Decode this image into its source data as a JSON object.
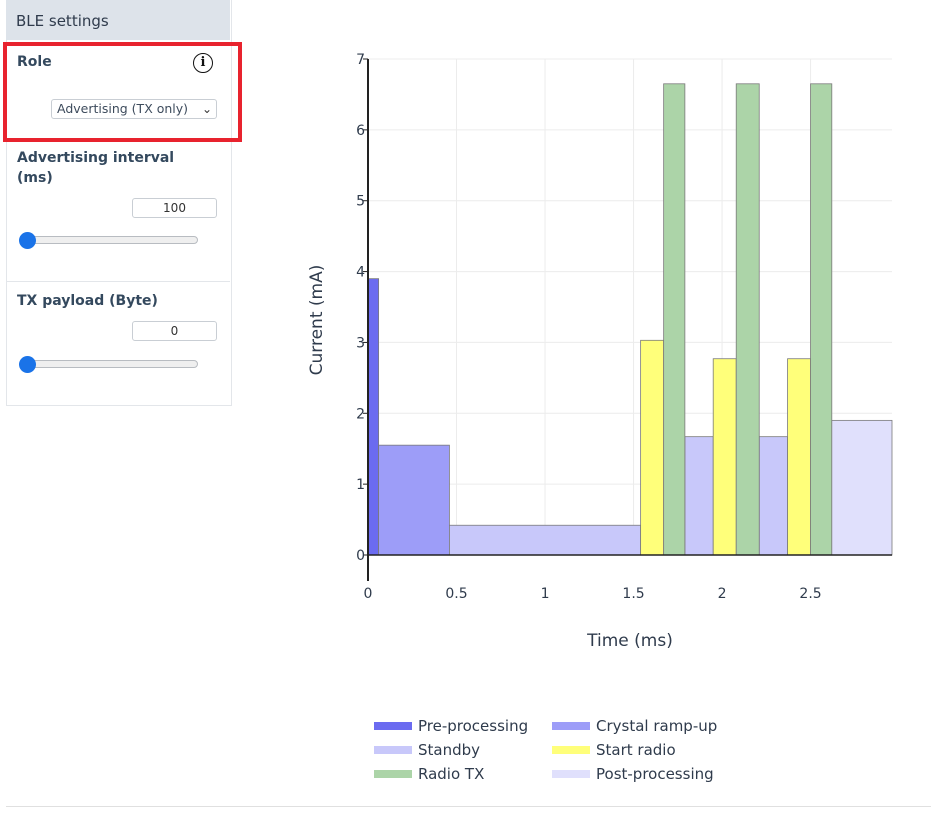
{
  "sidebar": {
    "title": "BLE settings",
    "role": {
      "label": "Role",
      "info_icon": "info-icon",
      "selected": "Advertising (TX only)"
    },
    "adv_interval": {
      "label_line1": "Advertising interval",
      "label_line2": "(ms)",
      "value": "100",
      "slider_fraction": 0.0
    },
    "tx_payload": {
      "label": "TX payload (Byte)",
      "value": "0",
      "slider_fraction": 0.0
    },
    "highlight_color": "#e8232e"
  },
  "chart_data": {
    "type": "bar",
    "xlabel": "Time (ms)",
    "ylabel": "Current (mA)",
    "xlim": [
      0,
      2.96
    ],
    "ylim": [
      0,
      7
    ],
    "xticks": [
      "0",
      "0.5",
      "1",
      "1.5",
      "2",
      "2.5"
    ],
    "yticks": [
      "0",
      "1",
      "2",
      "3",
      "4",
      "5",
      "6",
      "7"
    ],
    "grid": true,
    "legend_position": "bottom",
    "series": [
      {
        "name": "Pre-processing",
        "color": "#6b6bf0",
        "segments": [
          {
            "x0": 0,
            "x1": 0.06,
            "y": 3.9
          }
        ]
      },
      {
        "name": "Crystal ramp-up",
        "color": "#9d9df8",
        "segments": [
          {
            "x0": 0.06,
            "x1": 0.46,
            "y": 1.55
          }
        ]
      },
      {
        "name": "Standby",
        "color": "#c8c8fa",
        "segments": [
          {
            "x0": 0.46,
            "x1": 1.54,
            "y": 0.42
          },
          {
            "x0": 1.79,
            "x1": 1.95,
            "y": 1.67
          },
          {
            "x0": 2.21,
            "x1": 2.37,
            "y": 1.67
          }
        ]
      },
      {
        "name": "Start radio",
        "color": "#ffff7a",
        "segments": [
          {
            "x0": 1.54,
            "x1": 1.67,
            "y": 3.03
          },
          {
            "x0": 1.95,
            "x1": 2.08,
            "y": 2.77
          },
          {
            "x0": 2.37,
            "x1": 2.5,
            "y": 2.77
          }
        ]
      },
      {
        "name": "Radio TX",
        "color": "#acd4a8",
        "segments": [
          {
            "x0": 1.67,
            "x1": 1.79,
            "y": 6.65
          },
          {
            "x0": 2.08,
            "x1": 2.21,
            "y": 6.65
          },
          {
            "x0": 2.5,
            "x1": 2.62,
            "y": 6.65
          }
        ]
      },
      {
        "name": "Post-processing",
        "color": "#e0e0fc",
        "segments": [
          {
            "x0": 2.62,
            "x1": 2.96,
            "y": 1.9
          }
        ]
      }
    ]
  }
}
